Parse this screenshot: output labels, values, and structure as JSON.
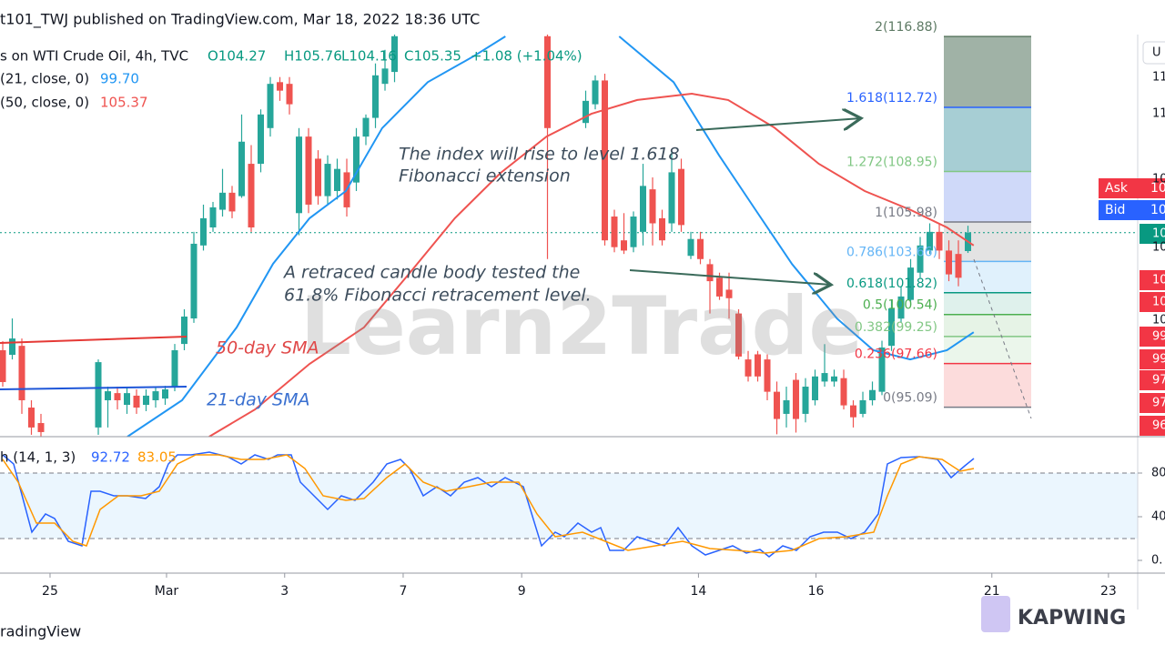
{
  "page": {
    "header": "t101_TWJ published on TradingView.com, Mar 18, 2022 18:36 UTC",
    "footer": "radingView",
    "brand": "KAPWING",
    "watermark": "Learn2Trade",
    "scale_button": "U",
    "ask": {
      "label": "Ask",
      "value": "10"
    },
    "bid": {
      "label": "Bid",
      "value": "10"
    },
    "price_scale_labels": [
      {
        "text": "11"
      },
      {
        "text": "11"
      },
      {
        "text": "10"
      },
      {
        "text": "10",
        "color": "#089981"
      },
      {
        "text": "10"
      },
      {
        "text": "10",
        "color": "#f23645"
      },
      {
        "text": "10",
        "color": "#f23645"
      },
      {
        "text": "10"
      },
      {
        "text": "99",
        "color": "#f23645"
      },
      {
        "text": "99",
        "color": "#f23645"
      },
      {
        "text": "97",
        "color": "#f23645"
      },
      {
        "text": "97",
        "color": "#f23645"
      },
      {
        "text": "96",
        "color": "#f23645"
      }
    ],
    "annotations": {
      "extension": [
        "The index will rise to  level 1.618",
        "Fibonacci extension"
      ],
      "retracement": [
        "A retraced candle body tested the",
        "61.8% Fibonacci retracement level."
      ],
      "sma50": "50-day SMA",
      "sma21": "21-day SMA"
    }
  },
  "chart_data": [
    {
      "type": "candlestick",
      "legend": {
        "symbol": "s on WTI Crude Oil, 4h, TVC",
        "ohlc": [
          "O104.27",
          "H105.76",
          "L104.16",
          "C105.35",
          "+1.08 (+1.04%)"
        ]
      },
      "xlim": [
        -0.2857,
        118.76
      ],
      "ylim": [
        93.36,
        116.89
      ],
      "up_color": "#26a69a",
      "down_color": "#ef5350",
      "last_price": 105.35,
      "x": [
        0,
        1,
        2,
        3,
        4,
        10,
        11,
        12,
        13,
        14,
        15,
        16,
        17,
        18,
        19,
        20,
        21,
        22,
        23,
        24,
        25,
        26,
        27,
        28,
        29,
        30,
        31,
        32,
        33,
        34,
        35,
        36,
        37,
        38,
        39,
        40,
        41,
        57,
        61,
        62,
        63,
        64,
        65,
        66,
        67,
        68,
        69,
        70,
        71,
        72,
        73,
        74,
        75,
        76,
        77,
        78,
        79,
        80,
        81,
        82,
        83,
        84,
        85,
        86,
        87,
        88,
        89,
        90,
        91,
        92,
        93,
        94,
        95,
        96,
        97,
        98,
        99,
        100,
        101
      ],
      "open": [
        98.44,
        98.17,
        98.7,
        95.07,
        94.16,
        93.9,
        95.5,
        95.92,
        95.23,
        95.77,
        95.23,
        95.5,
        95.6,
        96.3,
        98.81,
        100.31,
        104.6,
        105.66,
        106.7,
        107.7,
        107.5,
        109.4,
        109.4,
        111.5,
        114.2,
        114.1,
        106.5,
        111.0,
        109.7,
        107.5,
        107.8,
        108.9,
        108.3,
        111.0,
        112.1,
        114.1,
        114.8,
        116.9,
        111.8,
        112.9,
        114.3,
        106.3,
        104.9,
        104.5,
        105.4,
        107.9,
        106.2,
        105.9,
        109.1,
        103.99,
        104.98,
        103.5,
        102.7,
        102.0,
        100.6,
        97.9,
        98.2,
        97.9,
        96.0,
        94.7,
        96.7,
        94.7,
        95.5,
        96.6,
        96.6,
        96.8,
        95.2,
        94.7,
        95.5,
        96.0,
        98.7,
        100.3,
        101.4,
        103.0,
        104.3,
        105.4,
        104.3,
        104.1,
        104.27
      ],
      "high": [
        98.97,
        100.31,
        99.13,
        95.5,
        94.7,
        97.9,
        96.3,
        96.3,
        96.3,
        96.14,
        96.14,
        96.3,
        96.35,
        98.81,
        100.85,
        105.4,
        107.0,
        107.16,
        109.1,
        108.1,
        112.3,
        110.5,
        112.6,
        114.5,
        114.5,
        114.5,
        111.5,
        111.5,
        110.2,
        109.9,
        109.7,
        109.7,
        111.5,
        112.3,
        115.3,
        116.1,
        117.4,
        117.4,
        113.7,
        114.6,
        114.7,
        106.7,
        106.5,
        106.6,
        109.4,
        108.6,
        106.7,
        110.2,
        109.7,
        105.4,
        105.4,
        103.8,
        103.0,
        103.0,
        100.85,
        98.4,
        98.4,
        98.2,
        96.6,
        96.3,
        97.1,
        96.8,
        97.3,
        98.8,
        97.3,
        97.3,
        95.5,
        96.0,
        96.6,
        99.0,
        101.4,
        102.2,
        103.8,
        105.1,
        105.9,
        105.9,
        104.9,
        104.9,
        105.76
      ],
      "low": [
        96.3,
        97.9,
        94.7,
        93.47,
        93.36,
        93.47,
        93.9,
        94.96,
        94.7,
        94.7,
        94.86,
        95.07,
        95.23,
        96.03,
        98.44,
        100.05,
        104.3,
        105.4,
        106.3,
        106.2,
        107.4,
        105.4,
        108.9,
        111.0,
        113.1,
        112.3,
        105.2,
        106.5,
        107.0,
        107.0,
        107.3,
        106.3,
        107.8,
        110.5,
        111.5,
        113.7,
        114.2,
        103.8,
        111.5,
        112.6,
        104.6,
        104.2,
        104.1,
        104.2,
        104.6,
        104.6,
        104.6,
        105.4,
        105.4,
        103.8,
        103.5,
        100.6,
        101.4,
        100.3,
        97.9,
        96.6,
        96.6,
        95.5,
        93.5,
        93.9,
        93.6,
        94.2,
        95.2,
        96.3,
        96.3,
        94.96,
        93.9,
        94.5,
        95.2,
        95.8,
        98.4,
        100.05,
        101.1,
        102.7,
        104.1,
        103.8,
        102.5,
        102.2,
        104.16
      ],
      "close": [
        96.57,
        99.13,
        95.5,
        93.9,
        93.63,
        97.74,
        96.03,
        95.5,
        95.92,
        95.07,
        95.77,
        96.03,
        96.14,
        98.44,
        100.42,
        104.7,
        106.2,
        106.84,
        107.7,
        106.6,
        110.7,
        105.66,
        112.3,
        114.1,
        113.7,
        112.9,
        111.0,
        107.0,
        107.5,
        109.4,
        109.1,
        106.84,
        111.0,
        112.1,
        114.6,
        115.0,
        116.9,
        111.5,
        113.1,
        114.3,
        104.9,
        104.5,
        104.3,
        106.3,
        108.1,
        105.9,
        104.9,
        108.9,
        105.8,
        104.98,
        103.8,
        102.5,
        101.6,
        101.5,
        98.07,
        96.9,
        96.9,
        96.0,
        94.4,
        95.5,
        94.4,
        96.3,
        96.9,
        97.1,
        96.9,
        95.2,
        94.5,
        95.5,
        96.1,
        98.6,
        100.9,
        101.6,
        103.3,
        104.6,
        105.4,
        104.3,
        102.9,
        102.7,
        105.35
      ],
      "series": [
        {
          "name": "(21, close, 0)",
          "legend_value": "99.70",
          "color": "#2196f3",
          "x": [
            13.05,
            18.76,
            24.48,
            28.29,
            32.1,
            35.9,
            39.7,
            44.48,
            49.2,
            52.6,
            58.5,
            64.5,
            70.2,
            74.95,
            78.76,
            82.6,
            87.3,
            91.1,
            94.95,
            98.8,
            101.6
          ],
          "values": [
            93.36,
            95.5,
            99.78,
            103.52,
            106.2,
            107.8,
            111.5,
            114.2,
            115.7,
            116.89,
            null,
            116.89,
            114.2,
            109.9,
            106.7,
            103.5,
            100.3,
            98.44,
            97.9,
            98.44,
            99.5
          ]
        },
        {
          "name": "(50, close, 0)",
          "legend_value": "105.37",
          "color": "#ef5350",
          "x": [
            21.6,
            26.4,
            32.1,
            37.8,
            42.6,
            47.3,
            52.1,
            56.9,
            61.6,
            66.4,
            72.1,
            75.9,
            80.7,
            85.4,
            90.2,
            94.95,
            98.8,
            101.6
          ],
          "values": [
            93.36,
            94.96,
            97.64,
            99.78,
            102.99,
            106.2,
            108.87,
            111.0,
            112.34,
            113.15,
            113.52,
            113.15,
            111.54,
            109.4,
            107.8,
            106.7,
            105.66,
            104.6
          ]
        }
      ],
      "fib_levels": [
        {
          "label": "2(116.88)",
          "value": 116.88,
          "color": "#5d7a64",
          "fill": "#8fa596"
        },
        {
          "label": "1.618(112.72)",
          "value": 112.72,
          "color": "#2962ff",
          "fill": "#98c6cc"
        },
        {
          "label": "1.272(108.95)",
          "value": 108.95,
          "color": "#81c784",
          "fill": "#c7d2f8"
        },
        {
          "label": "1(105.98)",
          "value": 105.98,
          "color": "#787b86",
          "fill": "#dedede"
        },
        {
          "label": "0.786(103.66)",
          "value": 103.66,
          "color": "#64b5f6",
          "fill": "#daeefb"
        },
        {
          "label": "0.618(101.82)",
          "value": 101.82,
          "color": "#089981",
          "fill": "#d9efe9"
        },
        {
          "label": "0.5(100.54)",
          "value": 100.54,
          "color": "#4caf50",
          "fill": "#e2f1e2"
        },
        {
          "label": "0.382(99.25)",
          "value": 99.25,
          "color": "#81c784",
          "fill": "#e8f4e8"
        },
        {
          "label": "0.236(97.66)",
          "value": 97.66,
          "color": "#f23645",
          "fill": "#fbd6d6"
        },
        {
          "label": "0(95.09)",
          "value": 95.09,
          "color": "#787b86"
        }
      ]
    },
    {
      "type": "line",
      "legend": "h (14, 1, 3)",
      "xlim": [
        -0.2857,
        118.76
      ],
      "ylim": [
        -11.67,
        113.33
      ],
      "yticks": [
        80,
        40,
        {
          "value": 0,
          "label": "0."
        }
      ],
      "bands": [
        20,
        80
      ],
      "xticks": [
        {
          "value": 4.95,
          "label": "25"
        },
        {
          "value": 17.14,
          "label": "Mar"
        },
        {
          "value": 29.5,
          "label": "3"
        },
        {
          "value": 41.9,
          "label": "7"
        },
        {
          "value": 54.3,
          "label": "9"
        },
        {
          "value": 72.8,
          "label": "14"
        },
        {
          "value": 85.1,
          "label": "16"
        },
        {
          "value": 103.5,
          "label": "21"
        },
        {
          "value": 115.7,
          "label": "23"
        }
      ],
      "series": [
        {
          "legend_value": "92.72",
          "color": "#2962ff",
          "x": [
            0,
            1.14,
            3.05,
            4.48,
            5.43,
            6.86,
            8.29,
            9.24,
            10.19,
            11.62,
            13.05,
            14.95,
            16.38,
            17.33,
            18.29,
            19.71,
            21.62,
            23.52,
            24.95,
            26.38,
            27.81,
            28.76,
            30.19,
            31.14,
            32.57,
            34.0,
            35.43,
            36.86,
            38.76,
            40.19,
            41.62,
            42.57,
            44.0,
            45.43,
            46.86,
            48.29,
            49.71,
            51.14,
            52.57,
            54.48,
            56.38,
            57.81,
            58.76,
            60.19,
            61.62,
            62.57,
            63.52,
            64.95,
            66.38,
            67.81,
            69.24,
            70.67,
            72.1,
            73.52,
            74.95,
            76.38,
            77.81,
            79.24,
            80.19,
            81.62,
            83.05,
            84.48,
            85.9,
            87.33,
            88.76,
            90.19,
            91.62,
            92.57,
            94.0,
            95.9,
            97.81,
            99.24,
            100.67,
            101.62
          ],
          "values": [
            96.7,
            88.3,
            25.8,
            42.5,
            38.3,
            17.5,
            13.3,
            63.3,
            63.3,
            59.2,
            59.2,
            56.7,
            67.5,
            88.3,
            96.7,
            96.7,
            99.2,
            95.0,
            88.3,
            96.7,
            92.5,
            96.7,
            96.7,
            71.7,
            59.2,
            46.7,
            59.2,
            55.0,
            71.7,
            88.3,
            92.5,
            84.2,
            59.2,
            67.5,
            59.2,
            71.7,
            75.8,
            67.5,
            75.8,
            67.5,
            13.3,
            25.8,
            21.7,
            34.2,
            25.8,
            30.0,
            9.2,
            9.2,
            21.7,
            17.5,
            13.3,
            30.0,
            13.3,
            5.0,
            9.2,
            13.3,
            6.7,
            10.0,
            3.3,
            13.3,
            9.2,
            21.7,
            25.8,
            25.8,
            20.0,
            25.8,
            42.5,
            88.3,
            94.2,
            95.0,
            92.5,
            75.8,
            86.7,
            93.3
          ]
        },
        {
          "legend_value": "83.05",
          "color": "#ff9800",
          "x": [
            0,
            1.62,
            3.52,
            5.43,
            7.33,
            8.76,
            10.19,
            12.1,
            14.48,
            16.38,
            18.29,
            20.19,
            22.57,
            24.95,
            27.33,
            29.71,
            31.62,
            33.52,
            35.9,
            37.81,
            40.19,
            42.1,
            44.0,
            46.38,
            48.76,
            51.14,
            54.0,
            55.9,
            57.81,
            60.67,
            63.05,
            65.43,
            68.29,
            71.14,
            74.0,
            76.86,
            79.71,
            82.57,
            85.43,
            88.29,
            91.14,
            92.57,
            94.0,
            95.9,
            98.29,
            100.19,
            101.62
          ],
          "values": [
            92.5,
            71.7,
            34.2,
            34.2,
            17.5,
            13.3,
            46.7,
            59.2,
            59.2,
            63.3,
            88.3,
            96.7,
            96.7,
            92.5,
            92.5,
            96.7,
            84.2,
            59.2,
            55.0,
            56.7,
            75.8,
            88.3,
            71.7,
            63.3,
            67.5,
            71.7,
            71.7,
            42.5,
            21.7,
            25.8,
            17.5,
            9.2,
            13.3,
            17.5,
            10.8,
            9.2,
            6.7,
            9.2,
            20.0,
            21.7,
            25.8,
            59.2,
            88.3,
            95.0,
            92.5,
            81.7,
            84.2
          ]
        }
      ]
    }
  ]
}
